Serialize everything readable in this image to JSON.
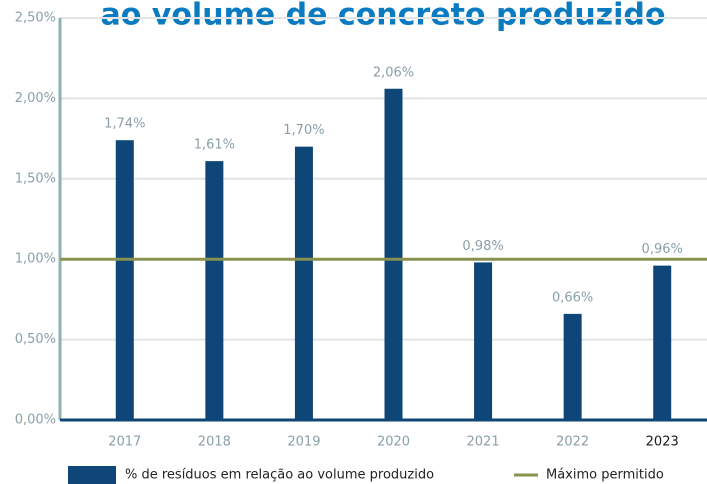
{
  "chart_data": {
    "type": "bar",
    "title": "ao volume de concreto produzido",
    "categories": [
      "2017",
      "2018",
      "2019",
      "2020",
      "2021",
      "2022",
      "2023"
    ],
    "series": [
      {
        "name": "% de resíduos em relação ao volume produzido",
        "color": "#0d4677",
        "values": [
          1.74,
          1.61,
          1.7,
          2.06,
          0.98,
          0.66,
          0.96
        ],
        "value_labels": [
          "1,74%",
          "1,61%",
          "1,70%",
          "2,06%",
          "0,98%",
          "0,66%",
          "0,96%"
        ]
      }
    ],
    "reference_line": {
      "name": "Máximo permitido",
      "value": 1.0,
      "color": "#8a9150"
    },
    "ylim": [
      0,
      2.5
    ],
    "yticks": [
      {
        "value": 0,
        "label": "0,00%"
      },
      {
        "value": 0.5,
        "label": "0,50%"
      },
      {
        "value": 1.0,
        "label": "1,00%"
      },
      {
        "value": 1.5,
        "label": "1,50%"
      },
      {
        "value": 2.0,
        "label": "2,00%"
      },
      {
        "value": 2.5,
        "label": "2,50%"
      }
    ],
    "grid": true
  }
}
